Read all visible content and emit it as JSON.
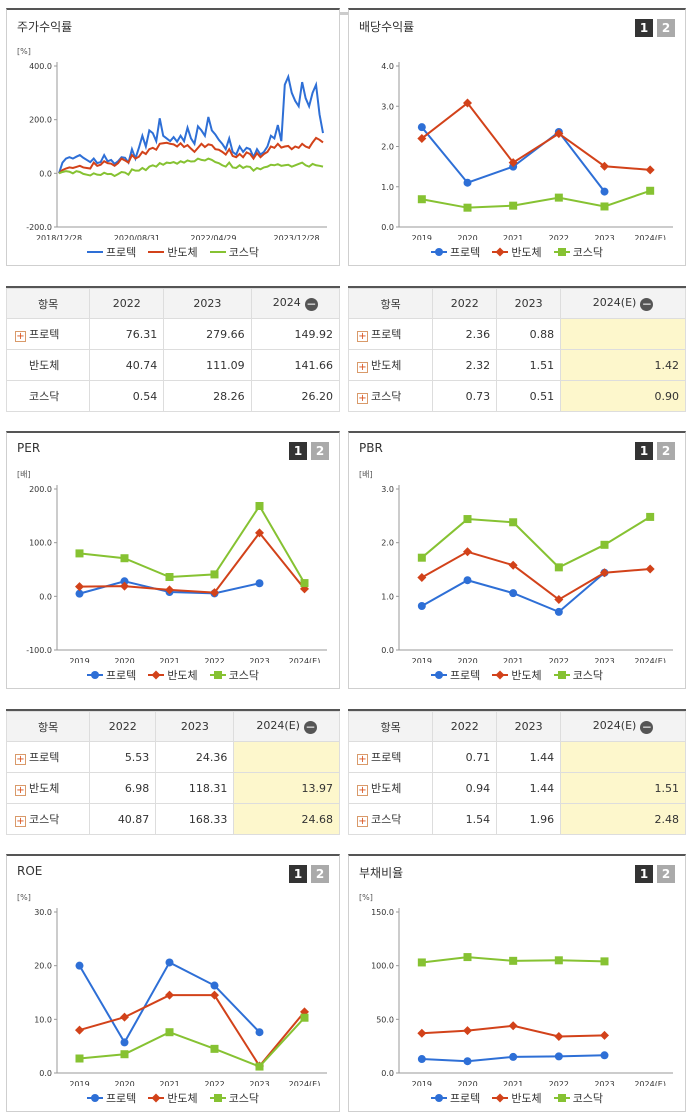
{
  "legend_names": [
    "프로텍",
    "반도체",
    "코스닥"
  ],
  "colors": {
    "s1": "#2e6fd6",
    "s2": "#d2421a",
    "s3": "#86c232"
  },
  "charts": [
    {
      "id": "price",
      "title": "주가수익률",
      "pager": [],
      "unit": "[%]",
      "chart_data": {
        "type": "line",
        "ylim": [
          -200,
          400
        ],
        "yticks": [
          "400.0",
          "200.0",
          "0.0",
          "-200.0"
        ],
        "xticks": [
          "2018/12/28",
          "2020/08/31",
          "2022/04/29",
          "2023/12/28"
        ],
        "series": [
          {
            "name": "프로텍",
            "values": [
              0,
              40,
              55,
              60,
              55,
              62,
              68,
              58,
              50,
              42,
              55,
              38,
              42,
              68,
              45,
              50,
              35,
              45,
              60,
              58,
              40,
              90,
              55,
              95,
              140,
              100,
              160,
              150,
              120,
              205,
              140,
              130,
              120,
              135,
              118,
              140,
              120,
              170,
              130,
              110,
              175,
              160,
              140,
              210,
              160,
              145,
              125,
              110,
              90,
              130,
              80,
              70,
              100,
              80,
              95,
              90,
              60,
              90,
              70,
              80,
              100,
              140,
              130,
              180,
              120,
              330,
              360,
              300,
              270,
              250,
              340,
              280,
              250,
              300,
              330,
              220,
              150
            ]
          },
          {
            "name": "반도체",
            "values": [
              0,
              12,
              18,
              22,
              20,
              24,
              28,
              22,
              20,
              18,
              40,
              28,
              32,
              45,
              38,
              36,
              28,
              38,
              55,
              48,
              40,
              68,
              55,
              62,
              80,
              72,
              90,
              95,
              88,
              110,
              112,
              114,
              110,
              108,
              100,
              112,
              98,
              105,
              92,
              80,
              95,
              110,
              98,
              108,
              105,
              90,
              88,
              80,
              70,
              90,
              65,
              60,
              72,
              60,
              78,
              72,
              55,
              75,
              60,
              72,
              80,
              100,
              95,
              110,
              96,
              100,
              102,
              90,
              100,
              95,
              110,
              100,
              95,
              115,
              132,
              125,
              115
            ]
          },
          {
            "name": "코스닥",
            "values": [
              0,
              5,
              8,
              6,
              0,
              8,
              5,
              -2,
              -5,
              -8,
              0,
              -5,
              -6,
              2,
              -3,
              -2,
              -10,
              -3,
              5,
              3,
              -5,
              15,
              10,
              10,
              20,
              12,
              25,
              30,
              25,
              38,
              32,
              40,
              38,
              42,
              36,
              45,
              40,
              48,
              44,
              45,
              55,
              50,
              48,
              55,
              50,
              42,
              38,
              30,
              25,
              40,
              22,
              20,
              30,
              20,
              26,
              24,
              10,
              20,
              15,
              22,
              25,
              32,
              30,
              34,
              28,
              30,
              32,
              25,
              30,
              35,
              40,
              30,
              25,
              35,
              30,
              28,
              25
            ]
          }
        ]
      }
    },
    {
      "id": "dividend",
      "title": "배당수익률",
      "pager": [
        "1",
        "2"
      ],
      "unit": "",
      "chart_data": {
        "type": "line",
        "ylim": [
          0,
          4
        ],
        "yticks": [
          "4.0",
          "3.0",
          "2.0",
          "1.0",
          "0.0"
        ],
        "categories": [
          "2019",
          "2020",
          "2021",
          "2022",
          "2023",
          "2024(E)"
        ],
        "series": [
          {
            "name": "프로텍",
            "values": [
              2.48,
              1.1,
              1.5,
              2.36,
              0.88,
              null
            ]
          },
          {
            "name": "반도체",
            "values": [
              2.2,
              3.08,
              1.6,
              2.32,
              1.51,
              1.42
            ]
          },
          {
            "name": "코스닥",
            "values": [
              0.69,
              0.48,
              0.53,
              0.73,
              0.51,
              0.9
            ]
          }
        ]
      }
    },
    {
      "id": "per",
      "title": "PER",
      "pager": [
        "1",
        "2"
      ],
      "unit": "[배]",
      "chart_data": {
        "type": "line",
        "ylim": [
          -100,
          200
        ],
        "yticks": [
          "200.0",
          "100.0",
          "0.0",
          "-100.0"
        ],
        "categories": [
          "2019",
          "2020",
          "2021",
          "2022",
          "2023",
          "2024(E)"
        ],
        "series": [
          {
            "name": "프로텍",
            "values": [
              5,
              28,
              8,
              5.53,
              24.36,
              null
            ]
          },
          {
            "name": "반도체",
            "values": [
              18,
              19,
              12,
              6.98,
              118.31,
              13.97
            ]
          },
          {
            "name": "코스닥",
            "values": [
              80,
              71,
              36,
              40.87,
              168.33,
              24.68
            ]
          }
        ]
      }
    },
    {
      "id": "pbr",
      "title": "PBR",
      "pager": [
        "1",
        "2"
      ],
      "unit": "[배]",
      "chart_data": {
        "type": "line",
        "ylim": [
          0,
          3
        ],
        "yticks": [
          "3.0",
          "2.0",
          "1.0",
          "0.0"
        ],
        "categories": [
          "2019",
          "2020",
          "2021",
          "2022",
          "2023",
          "2024(E)"
        ],
        "series": [
          {
            "name": "프로텍",
            "values": [
              0.82,
              1.3,
              1.06,
              0.71,
              1.44,
              null
            ]
          },
          {
            "name": "반도체",
            "values": [
              1.35,
              1.83,
              1.58,
              0.94,
              1.44,
              1.51
            ]
          },
          {
            "name": "코스닥",
            "values": [
              1.72,
              2.44,
              2.38,
              1.54,
              1.96,
              2.48
            ]
          }
        ]
      }
    },
    {
      "id": "roe",
      "title": "ROE",
      "pager": [
        "1",
        "2"
      ],
      "unit": "[%]",
      "chart_data": {
        "type": "line",
        "ylim": [
          0,
          30
        ],
        "yticks": [
          "30.0",
          "20.0",
          "10.0",
          "0.0"
        ],
        "categories": [
          "2019",
          "2020",
          "2021",
          "2022",
          "2023",
          "2024(E)"
        ],
        "series": [
          {
            "name": "프로텍",
            "values": [
              20,
              5.7,
              20.6,
              16.3,
              7.6,
              null
            ]
          },
          {
            "name": "반도체",
            "values": [
              8,
              10.4,
              14.5,
              14.5,
              1.3,
              11.4
            ]
          },
          {
            "name": "코스닥",
            "values": [
              2.7,
              3.5,
              7.6,
              4.5,
              1.2,
              10.3
            ]
          }
        ]
      }
    },
    {
      "id": "debt",
      "title": "부채비율",
      "pager": [
        "1",
        "2"
      ],
      "unit": "[%]",
      "chart_data": {
        "type": "line",
        "ylim": [
          0,
          150
        ],
        "yticks": [
          "150.0",
          "100.0",
          "50.0",
          "0.0"
        ],
        "categories": [
          "2019",
          "2020",
          "2021",
          "2022",
          "2023",
          "2024(E)"
        ],
        "series": [
          {
            "name": "프로텍",
            "values": [
              13,
              11,
              15,
              15.5,
              16.5,
              null
            ]
          },
          {
            "name": "반도체",
            "values": [
              37,
              39.5,
              44,
              34,
              35,
              null
            ]
          },
          {
            "name": "코스닥",
            "values": [
              103,
              108,
              104.5,
              105,
              104,
              null
            ]
          }
        ]
      }
    }
  ],
  "tables": [
    {
      "id": "price",
      "header": [
        "항목",
        "2022",
        "2023",
        "2024"
      ],
      "rows": [
        {
          "name": "프로텍",
          "plus": true,
          "values": [
            "76.31",
            "279.66",
            "149.92"
          ]
        },
        {
          "name": "반도체",
          "plus": false,
          "values": [
            "40.74",
            "111.09",
            "141.66"
          ]
        },
        {
          "name": "코스닥",
          "plus": false,
          "values": [
            "0.54",
            "28.26",
            "26.20"
          ]
        }
      ]
    },
    {
      "id": "dividend",
      "header": [
        "항목",
        "2022",
        "2023",
        "2024(E)"
      ],
      "rows": [
        {
          "name": "프로텍",
          "plus": true,
          "values": [
            "2.36",
            "0.88",
            ""
          ]
        },
        {
          "name": "반도체",
          "plus": true,
          "values": [
            "2.32",
            "1.51",
            "1.42"
          ]
        },
        {
          "name": "코스닥",
          "plus": true,
          "values": [
            "0.73",
            "0.51",
            "0.90"
          ]
        }
      ]
    },
    {
      "id": "per",
      "header": [
        "항목",
        "2022",
        "2023",
        "2024(E)"
      ],
      "rows": [
        {
          "name": "프로텍",
          "plus": true,
          "values": [
            "5.53",
            "24.36",
            ""
          ]
        },
        {
          "name": "반도체",
          "plus": true,
          "values": [
            "6.98",
            "118.31",
            "13.97"
          ]
        },
        {
          "name": "코스닥",
          "plus": true,
          "values": [
            "40.87",
            "168.33",
            "24.68"
          ]
        }
      ]
    },
    {
      "id": "pbr",
      "header": [
        "항목",
        "2022",
        "2023",
        "2024(E)"
      ],
      "rows": [
        {
          "name": "프로텍",
          "plus": true,
          "values": [
            "0.71",
            "1.44",
            ""
          ]
        },
        {
          "name": "반도체",
          "plus": true,
          "values": [
            "0.94",
            "1.44",
            "1.51"
          ]
        },
        {
          "name": "코스닥",
          "plus": true,
          "values": [
            "1.54",
            "1.96",
            "2.48"
          ]
        }
      ]
    }
  ]
}
